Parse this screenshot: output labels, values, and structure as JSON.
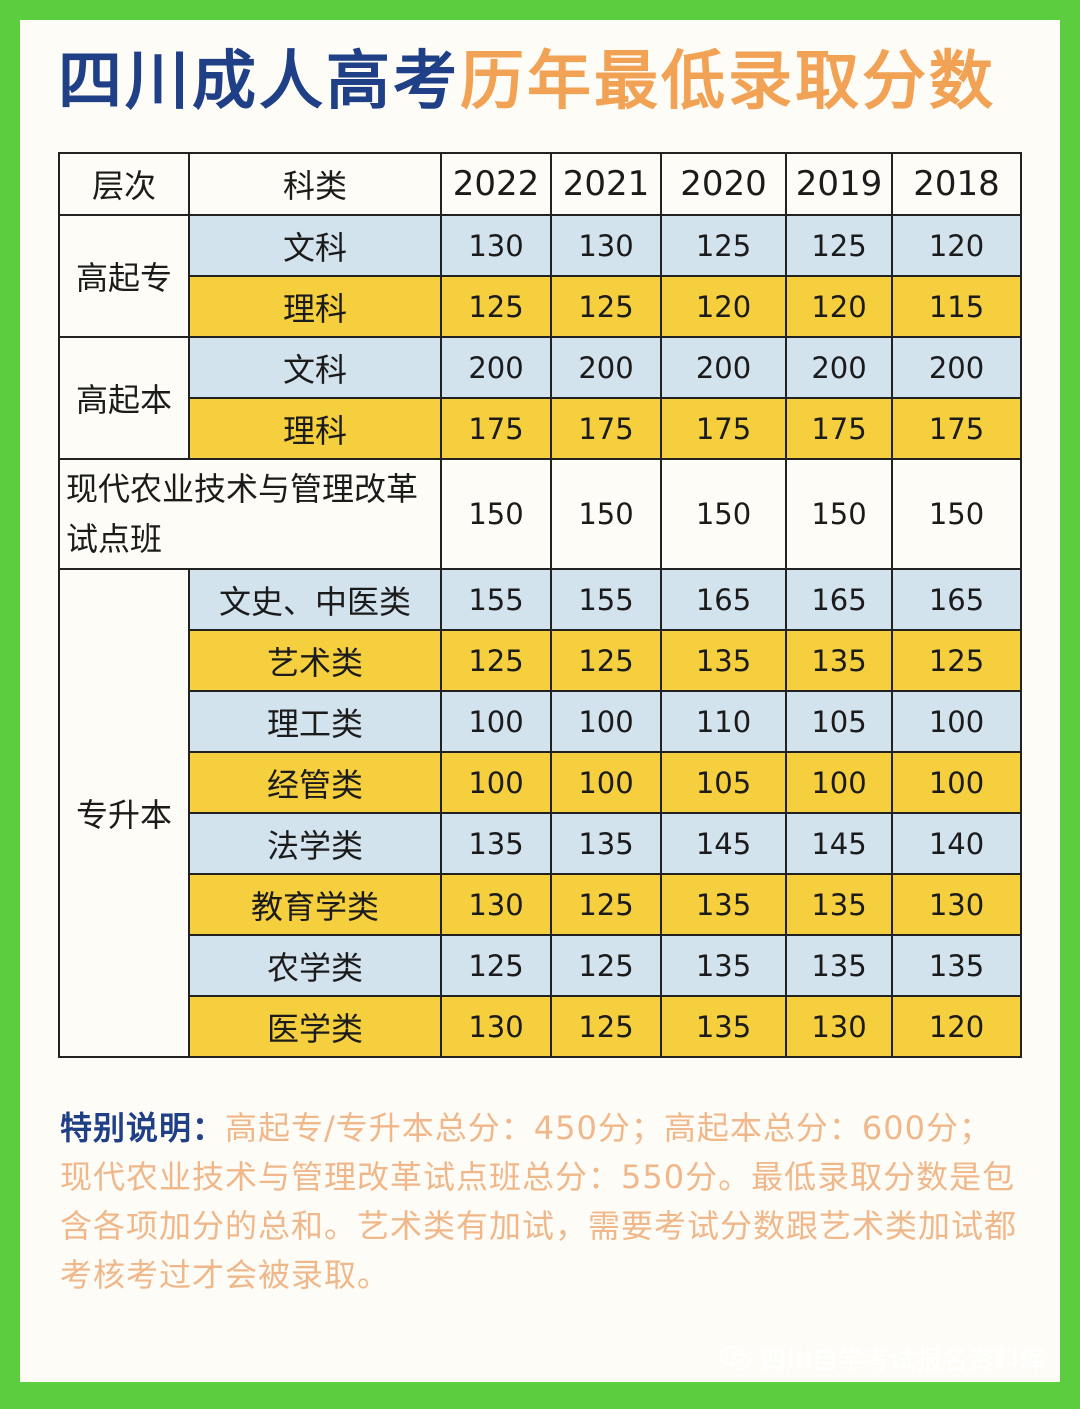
{
  "title": {
    "part1": "四川成人高考",
    "part2": "历年最低录取分数"
  },
  "table": {
    "header": {
      "level": "层次",
      "category": "科类",
      "years": [
        "2022",
        "2021",
        "2020",
        "2019",
        "2018"
      ]
    },
    "groups": [
      {
        "level": "高起专",
        "rows": [
          {
            "category": "文科",
            "scores": [
              "130",
              "130",
              "125",
              "125",
              "120"
            ]
          },
          {
            "category": "理科",
            "scores": [
              "125",
              "125",
              "120",
              "120",
              "115"
            ]
          }
        ]
      },
      {
        "level": "高起本",
        "rows": [
          {
            "category": "文科",
            "scores": [
              "200",
              "200",
              "200",
              "200",
              "200"
            ]
          },
          {
            "category": "理科",
            "scores": [
              "175",
              "175",
              "175",
              "175",
              "175"
            ]
          }
        ]
      },
      {
        "level": "现代农业技术与管理改革试点班",
        "rows": [
          {
            "category": "",
            "scores": [
              "150",
              "150",
              "150",
              "150",
              "150"
            ]
          }
        ]
      },
      {
        "level": "专升本",
        "rows": [
          {
            "category": "文史、中医类",
            "scores": [
              "155",
              "155",
              "165",
              "165",
              "165"
            ]
          },
          {
            "category": "艺术类",
            "scores": [
              "125",
              "125",
              "135",
              "135",
              "125"
            ]
          },
          {
            "category": "理工类",
            "scores": [
              "100",
              "100",
              "110",
              "105",
              "100"
            ]
          },
          {
            "category": "经管类",
            "scores": [
              "100",
              "100",
              "105",
              "100",
              "100"
            ]
          },
          {
            "category": "法学类",
            "scores": [
              "135",
              "135",
              "145",
              "145",
              "140"
            ]
          },
          {
            "category": "教育学类",
            "scores": [
              "130",
              "125",
              "135",
              "135",
              "130"
            ]
          },
          {
            "category": "农学类",
            "scores": [
              "125",
              "125",
              "135",
              "135",
              "135"
            ]
          },
          {
            "category": "医学类",
            "scores": [
              "130",
              "125",
              "135",
              "130",
              "120"
            ]
          }
        ]
      }
    ]
  },
  "note": {
    "lead": "特别说明：",
    "text": "高起专/专升本总分：450分；高起本总分：600分；现代农业技术与管理改革试点班总分：550分。最低录取分数是包含各项加分的总和。艺术类有加试，需要考试分数跟艺术类加试都考核考过才会被录取。"
  },
  "footer": {
    "source": "四川自学考试报名资料库",
    "icon": "wechat-icon"
  },
  "colors": {
    "title_blue": "#1f3f86",
    "title_orange": "#f2a255",
    "row_blue": "#d3e3ee",
    "row_yellow": "#f5cf3d",
    "frame_green": "#5ccd3f"
  }
}
